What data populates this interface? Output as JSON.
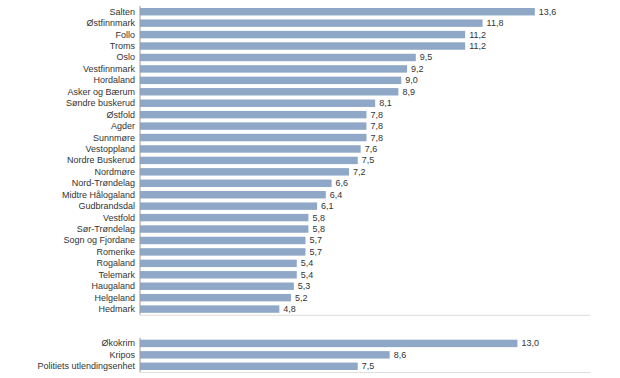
{
  "chart_data": [
    {
      "type": "bar",
      "orientation": "horizontal",
      "categories": [
        "Salten",
        "Østfinnmark",
        "Follo",
        "Troms",
        "Oslo",
        "Vestfinnmark",
        "Hordaland",
        "Asker og Bærum",
        "Søndre buskerud",
        "Østfold",
        "Agder",
        "Sunnmøre",
        "Vestoppland",
        "Nordre Buskerud",
        "Nordmøre",
        "Nord-Trøndelag",
        "Midtre Hålogaland",
        "Gudbrandsdal",
        "Vestfold",
        "Sør-Trøndelag",
        "Sogn og Fjordane",
        "Romerike",
        "Rogaland",
        "Telemark",
        "Haugaland",
        "Helgeland",
        "Hedmark"
      ],
      "values": [
        13.6,
        11.8,
        11.2,
        11.2,
        9.5,
        9.2,
        9.0,
        8.9,
        8.1,
        7.8,
        7.8,
        7.8,
        7.6,
        7.5,
        7.2,
        6.6,
        6.4,
        6.1,
        5.8,
        5.8,
        5.7,
        5.7,
        5.4,
        5.4,
        5.3,
        5.2,
        4.8
      ],
      "value_labels": [
        "13,6",
        "11,8",
        "11,2",
        "11,2",
        "9,5",
        "9,2",
        "9,0",
        "8,9",
        "8,1",
        "7,8",
        "7,8",
        "7,8",
        "7,6",
        "7,5",
        "7,2",
        "6,6",
        "6,4",
        "6,1",
        "5,8",
        "5,8",
        "5,7",
        "5,7",
        "5,4",
        "5,4",
        "5,3",
        "5,2",
        "4,8"
      ],
      "color": "#8fa8c8",
      "xlim": [
        0,
        15.5
      ],
      "data_labels": true,
      "tick_labels": "y",
      "grid": false
    },
    {
      "type": "bar",
      "orientation": "horizontal",
      "categories": [
        "Økokrim",
        "Kripos",
        "Politiets utlendingsenhet"
      ],
      "values": [
        13.0,
        8.6,
        7.5
      ],
      "value_labels": [
        "13,0",
        "8,6",
        "7,5"
      ],
      "color": "#8fa8c8",
      "xlim": [
        0,
        15.5
      ],
      "data_labels": true,
      "tick_labels": "y",
      "grid": false
    }
  ]
}
